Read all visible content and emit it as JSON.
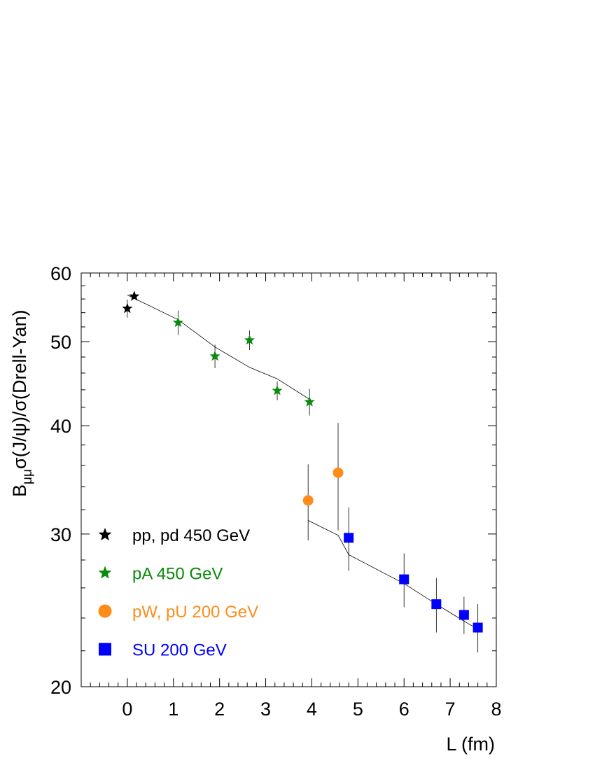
{
  "chart_data": {
    "type": "scatter",
    "xlabel": "L (fm)",
    "ylabel": {
      "prefix": "B",
      "subscript": "μμ",
      "rest": "σ(J/ψ)/σ(Drell-Yan)"
    },
    "xlim": [
      -1,
      8
    ],
    "ylim": [
      20,
      60
    ],
    "yscale": "log",
    "xticks": [
      0,
      1,
      2,
      3,
      4,
      5,
      6,
      7,
      8
    ],
    "yticks": [
      20,
      30,
      40,
      50,
      60
    ],
    "grid": false,
    "legend_position": "lower-left",
    "series": [
      {
        "name": "pp, pd 450 GeV",
        "marker": "star",
        "color": "#000000",
        "points": [
          {
            "x": 0.0,
            "y": 54.6,
            "err": 1.3
          },
          {
            "x": 0.15,
            "y": 56.4,
            "err": 0.3
          }
        ]
      },
      {
        "name": "pA 450 GeV",
        "marker": "star",
        "color": "#0a8a0a",
        "points": [
          {
            "x": 1.1,
            "y": 52.6,
            "err": 1.7
          },
          {
            "x": 1.9,
            "y": 48.1,
            "err": 1.5
          },
          {
            "x": 2.65,
            "y": 50.2,
            "err": 1.3
          },
          {
            "x": 3.25,
            "y": 43.9,
            "err": 1.1
          },
          {
            "x": 3.95,
            "y": 42.6,
            "err": 1.5
          }
        ]
      },
      {
        "name": "pW, pU 200 GeV",
        "marker": "circle",
        "color": "#ff8c1a",
        "points": [
          {
            "x": 3.92,
            "y": 32.8,
            "err": 3.3
          },
          {
            "x": 4.57,
            "y": 35.3,
            "err": 5.0
          }
        ]
      },
      {
        "name": "SU 200 GeV",
        "marker": "square",
        "color": "#0000ff",
        "points": [
          {
            "x": 4.8,
            "y": 29.7,
            "err": 2.5
          },
          {
            "x": 6.0,
            "y": 26.6,
            "err": 1.9
          },
          {
            "x": 6.7,
            "y": 24.9,
            "err": 1.8
          },
          {
            "x": 7.3,
            "y": 24.2,
            "err": 1.2
          },
          {
            "x": 7.6,
            "y": 23.4,
            "err": 1.5
          }
        ]
      }
    ],
    "fit_curves": [
      [
        {
          "x": 0.0,
          "y": 56.6
        },
        {
          "x": 1.1,
          "y": 53.0
        },
        {
          "x": 1.9,
          "y": 49.3
        },
        {
          "x": 2.65,
          "y": 46.7
        },
        {
          "x": 3.25,
          "y": 45.3
        },
        {
          "x": 3.95,
          "y": 42.9
        }
      ],
      [
        {
          "x": 3.92,
          "y": 31.1
        },
        {
          "x": 4.57,
          "y": 29.9
        },
        {
          "x": 4.8,
          "y": 28.4
        },
        {
          "x": 6.0,
          "y": 26.3
        },
        {
          "x": 6.7,
          "y": 24.9
        },
        {
          "x": 7.3,
          "y": 23.8
        },
        {
          "x": 7.6,
          "y": 23.3
        }
      ]
    ]
  }
}
